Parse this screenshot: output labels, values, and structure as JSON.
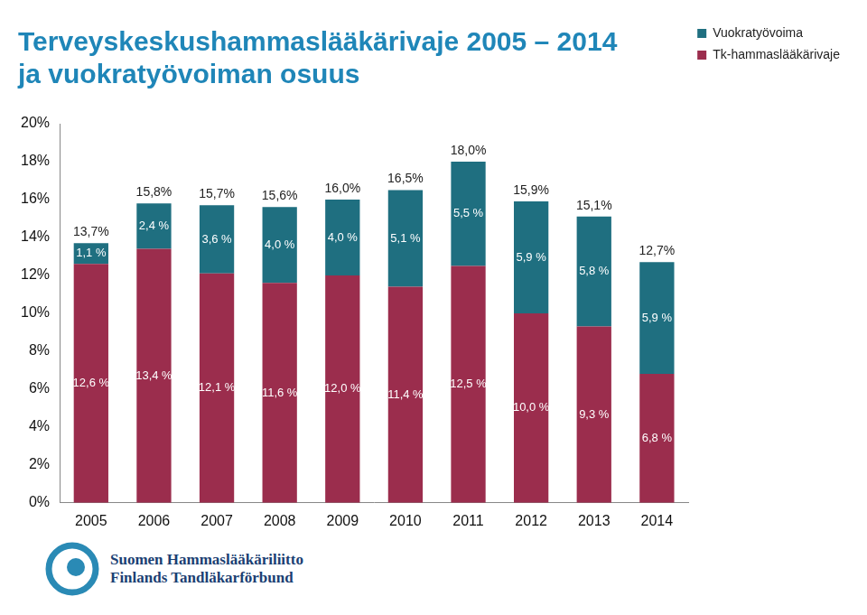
{
  "chart_data": {
    "type": "bar",
    "title": [
      "Terveyskeskushammaslääkärivaje 2005 – 2014",
      "ja vuokratyövoiman osuus"
    ],
    "categories": [
      "2005",
      "2006",
      "2007",
      "2008",
      "2009",
      "2010",
      "2011",
      "2012",
      "2013",
      "2014"
    ],
    "series": [
      {
        "name": "Tk-hammaslääkärivaje",
        "color": "#9b2d4d",
        "values": [
          12.6,
          13.4,
          12.1,
          11.6,
          12.0,
          11.4,
          12.5,
          10.0,
          9.3,
          6.8
        ],
        "value_labels": [
          "12,6 %",
          "13,4 %",
          "12,1 %",
          "11,6 %",
          "12,0 %",
          "11,4 %",
          "12,5 %",
          "10,0 %",
          "9,3 %",
          "6,8 %"
        ]
      },
      {
        "name": "Vuokratyövoima",
        "color": "#1f6f80",
        "values": [
          1.1,
          2.4,
          3.6,
          4.0,
          4.0,
          5.1,
          5.5,
          5.9,
          5.8,
          5.9
        ],
        "value_labels": [
          "1,1 %",
          "2,4 %",
          "3,6 %",
          "4,0 %",
          "4,0 %",
          "5,1 %",
          "5,5 %",
          "5,9 %",
          "5,8 %",
          "5,9 %"
        ]
      }
    ],
    "totals": [
      13.7,
      15.8,
      15.7,
      15.6,
      16.0,
      16.5,
      18.0,
      15.9,
      15.1,
      12.7
    ],
    "total_labels": [
      "13,7%",
      "15,8%",
      "15,7%",
      "15,6%",
      "16,0%",
      "16,5%",
      "18,0%",
      "15,9%",
      "15,1%",
      "12,7%"
    ],
    "ylim": [
      0,
      20
    ],
    "yticks": [
      {
        "value": 0,
        "label": "0%"
      },
      {
        "value": 2,
        "label": "2%"
      },
      {
        "value": 4,
        "label": "4%"
      },
      {
        "value": 6,
        "label": "6%"
      },
      {
        "value": 8,
        "label": "8%"
      },
      {
        "value": 10,
        "label": "10%"
      },
      {
        "value": 12,
        "label": "12%"
      },
      {
        "value": 14,
        "label": "14%"
      },
      {
        "value": 16,
        "label": "16%"
      },
      {
        "value": 18,
        "label": "18%"
      },
      {
        "value": 20,
        "label": "20%"
      }
    ],
    "stacked": true,
    "data_labels": true,
    "grid": false,
    "legend": "right",
    "annotations": [
      "Suomen Hammaslääkäriliitto",
      "Finlands Tandläkarförbund"
    ]
  }
}
